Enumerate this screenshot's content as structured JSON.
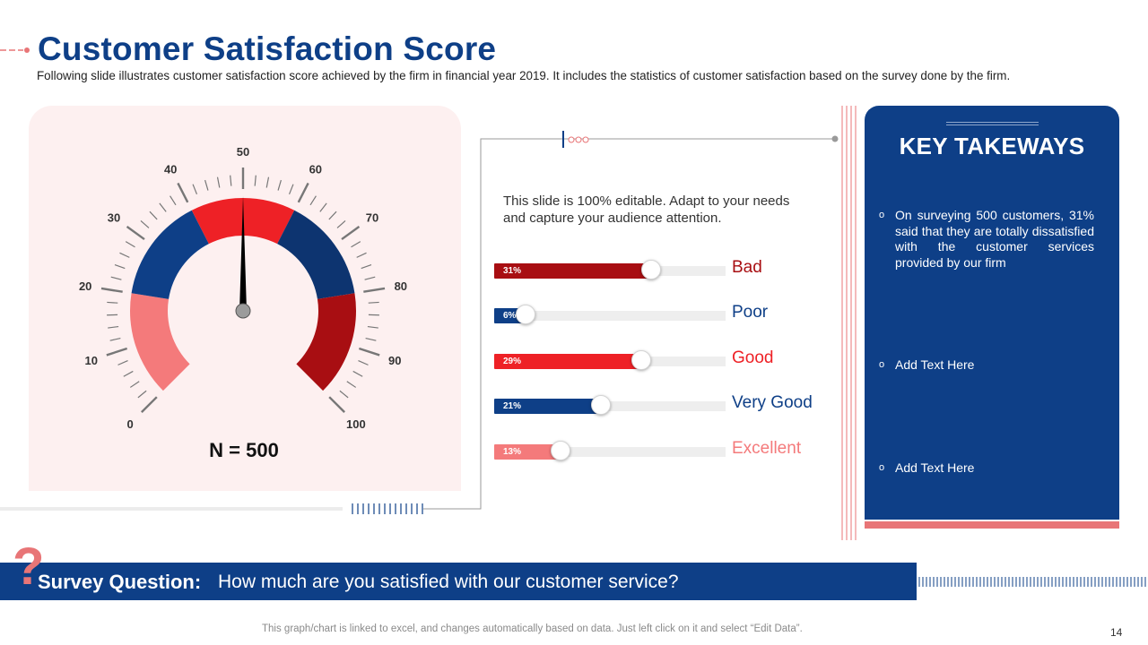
{
  "header": {
    "title": "Customer Satisfaction Score",
    "subtitle": "Following slide illustrates customer satisfaction score achieved by the firm in financial year 2019. It includes the statistics of customer satisfaction based on the survey done by the firm."
  },
  "chart_data": [
    {
      "type": "gauge",
      "scale_min": 0,
      "scale_max": 100,
      "tick_labels": [
        "0",
        "10",
        "20",
        "30",
        "40",
        "50",
        "60",
        "70",
        "80",
        "90",
        "100"
      ],
      "needle_value": 50,
      "bands": [
        {
          "from": 0,
          "to": 20,
          "color": "#f47a7b"
        },
        {
          "from": 20,
          "to": 40,
          "color": "#0e3f87"
        },
        {
          "from": 40,
          "to": 60,
          "color": "#ee2126"
        },
        {
          "from": 60,
          "to": 80,
          "color": "#0d3470"
        },
        {
          "from": 80,
          "to": 100,
          "color": "#a80e12"
        }
      ],
      "sample_size_label": "N = 500"
    },
    {
      "type": "bar",
      "orientation": "horizontal",
      "categories": [
        "Bad",
        "Poor",
        "Good",
        "Very Good",
        "Excellent"
      ],
      "values": [
        31,
        6,
        29,
        21,
        13
      ],
      "value_labels": [
        "31%",
        "6%",
        "29%",
        "21%",
        "13%"
      ],
      "max": 46,
      "colors": [
        "#a80e12",
        "#0e3f87",
        "#ee2126",
        "#0e3f87",
        "#f47a7b"
      ]
    }
  ],
  "intro_text": "This slide is 100% editable. Adapt to your needs and capture your audience attention.",
  "takeaways": {
    "title": "KEY TAKEWAYS",
    "bullet_symbol": "o",
    "items": [
      "On surveying 500 customers, 31% said that they are totally dissatisfied with the customer services provided by our firm",
      "Add Text Here",
      "Add Text Here"
    ]
  },
  "survey": {
    "mark": "?",
    "label": "Survey Question:",
    "question": "How much are you satisfied  with our customer service?"
  },
  "footer": {
    "note": "This graph/chart is linked to excel, and changes automatically based on data. Just left click on it and select “Edit Data”.",
    "page_number": "14"
  },
  "colors": {
    "brand_blue": "#0e3f87",
    "dark_navy": "#0d3470",
    "red": "#ee2126",
    "dark_red": "#a80e12",
    "salmon": "#f47a7b",
    "panel_pink": "#fdf0f0"
  }
}
